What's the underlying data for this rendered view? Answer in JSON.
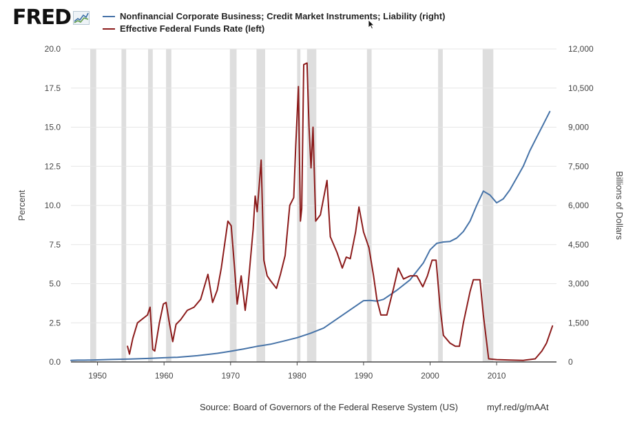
{
  "logo": {
    "text": "FRED",
    "icon": "chart-line-icon"
  },
  "chart_data": {
    "type": "line",
    "x_range": [
      1946,
      2019
    ],
    "x_ticks": [
      "1950",
      "1960",
      "1970",
      "1980",
      "1990",
      "2000",
      "2010"
    ],
    "left_axis": {
      "label": "Percent",
      "range": [
        0,
        20
      ],
      "ticks": [
        "0.0",
        "2.5",
        "5.0",
        "7.5",
        "10.0",
        "12.5",
        "15.0",
        "17.5",
        "20.0"
      ]
    },
    "right_axis": {
      "label": "Billions of Dollars",
      "range": [
        0,
        12000
      ],
      "ticks": [
        "0",
        "1,500",
        "3,000",
        "4,500",
        "6,000",
        "7,500",
        "9,000",
        "10,500",
        "12,000"
      ]
    },
    "gridlines": "horizontal",
    "recessions": [
      [
        1948.9,
        1949.8
      ],
      [
        1953.6,
        1954.3
      ],
      [
        1957.6,
        1958.3
      ],
      [
        1960.3,
        1961.1
      ],
      [
        1969.9,
        1970.9
      ],
      [
        1973.9,
        1975.2
      ],
      [
        1980.0,
        1980.5
      ],
      [
        1981.5,
        1982.9
      ],
      [
        1990.5,
        1991.2
      ],
      [
        2001.2,
        2001.9
      ],
      [
        2007.9,
        2009.5
      ]
    ],
    "series": [
      {
        "name": "Nonfinancial Corporate Business; Credit Market Instruments; Liability (right)",
        "axis": "right",
        "color": "#4572a7",
        "points": [
          [
            1946,
            60
          ],
          [
            1947,
            70
          ],
          [
            1948,
            70
          ],
          [
            1949,
            75
          ],
          [
            1950,
            80
          ],
          [
            1952,
            95
          ],
          [
            1955,
            110
          ],
          [
            1958,
            140
          ],
          [
            1960,
            160
          ],
          [
            1962,
            180
          ],
          [
            1965,
            240
          ],
          [
            1968,
            330
          ],
          [
            1970,
            410
          ],
          [
            1972,
            500
          ],
          [
            1974,
            600
          ],
          [
            1976,
            680
          ],
          [
            1978,
            800
          ],
          [
            1980,
            930
          ],
          [
            1982,
            1100
          ],
          [
            1984,
            1300
          ],
          [
            1986,
            1650
          ],
          [
            1988,
            2000
          ],
          [
            1990,
            2350
          ],
          [
            1991,
            2360
          ],
          [
            1992,
            2330
          ],
          [
            1993,
            2400
          ],
          [
            1995,
            2750
          ],
          [
            1997,
            3150
          ],
          [
            1999,
            3800
          ],
          [
            2000,
            4300
          ],
          [
            2001,
            4550
          ],
          [
            2002,
            4600
          ],
          [
            2003,
            4620
          ],
          [
            2004,
            4750
          ],
          [
            2005,
            5000
          ],
          [
            2006,
            5400
          ],
          [
            2007,
            6000
          ],
          [
            2008,
            6550
          ],
          [
            2009,
            6400
          ],
          [
            2010,
            6100
          ],
          [
            2011,
            6250
          ],
          [
            2012,
            6600
          ],
          [
            2013,
            7050
          ],
          [
            2014,
            7500
          ],
          [
            2015,
            8100
          ],
          [
            2016,
            8600
          ],
          [
            2017,
            9100
          ],
          [
            2018,
            9600
          ]
        ]
      },
      {
        "name": "Effective Federal Funds Rate (left)",
        "axis": "left",
        "color": "#8b1a1a",
        "points": [
          [
            1954.5,
            1.0
          ],
          [
            1954.8,
            0.5
          ],
          [
            1955.3,
            1.5
          ],
          [
            1956,
            2.5
          ],
          [
            1957.5,
            3.0
          ],
          [
            1957.9,
            3.5
          ],
          [
            1958.3,
            0.8
          ],
          [
            1958.6,
            0.7
          ],
          [
            1959.3,
            2.5
          ],
          [
            1959.9,
            3.7
          ],
          [
            1960.3,
            3.8
          ],
          [
            1960.8,
            2.5
          ],
          [
            1961.3,
            1.3
          ],
          [
            1961.8,
            2.4
          ],
          [
            1962.5,
            2.7
          ],
          [
            1963.5,
            3.3
          ],
          [
            1964.5,
            3.5
          ],
          [
            1965.5,
            4.0
          ],
          [
            1966.6,
            5.6
          ],
          [
            1967.3,
            3.8
          ],
          [
            1968,
            4.6
          ],
          [
            1968.6,
            6.0
          ],
          [
            1969.6,
            9.0
          ],
          [
            1970.1,
            8.7
          ],
          [
            1970.6,
            6.0
          ],
          [
            1971,
            3.7
          ],
          [
            1971.6,
            5.5
          ],
          [
            1972.2,
            3.3
          ],
          [
            1972.6,
            4.7
          ],
          [
            1973.4,
            8.5
          ],
          [
            1973.7,
            10.6
          ],
          [
            1974,
            9.6
          ],
          [
            1974.6,
            12.9
          ],
          [
            1975,
            6.5
          ],
          [
            1975.5,
            5.5
          ],
          [
            1976,
            5.2
          ],
          [
            1976.9,
            4.7
          ],
          [
            1977.5,
            5.6
          ],
          [
            1978.2,
            6.8
          ],
          [
            1978.9,
            10.0
          ],
          [
            1979.5,
            10.5
          ],
          [
            1979.8,
            13.8
          ],
          [
            1980.2,
            17.6
          ],
          [
            1980.5,
            9.0
          ],
          [
            1980.7,
            9.8
          ],
          [
            1981,
            19.0
          ],
          [
            1981.5,
            19.1
          ],
          [
            1981.8,
            15.0
          ],
          [
            1982.1,
            12.4
          ],
          [
            1982.4,
            15.0
          ],
          [
            1982.8,
            9.0
          ],
          [
            1983.5,
            9.4
          ],
          [
            1984.5,
            11.6
          ],
          [
            1985,
            8.0
          ],
          [
            1986,
            7.0
          ],
          [
            1986.8,
            6.0
          ],
          [
            1987.4,
            6.7
          ],
          [
            1988,
            6.6
          ],
          [
            1988.8,
            8.3
          ],
          [
            1989.3,
            9.9
          ],
          [
            1990,
            8.3
          ],
          [
            1990.8,
            7.3
          ],
          [
            1991.5,
            5.5
          ],
          [
            1992,
            4.0
          ],
          [
            1992.6,
            3.0
          ],
          [
            1993.5,
            3.0
          ],
          [
            1994.5,
            4.7
          ],
          [
            1995.2,
            6.0
          ],
          [
            1996,
            5.3
          ],
          [
            1997,
            5.5
          ],
          [
            1998,
            5.5
          ],
          [
            1998.9,
            4.8
          ],
          [
            1999.6,
            5.5
          ],
          [
            2000.3,
            6.5
          ],
          [
            2000.9,
            6.5
          ],
          [
            2001.5,
            3.5
          ],
          [
            2002,
            1.7
          ],
          [
            2003,
            1.2
          ],
          [
            2003.8,
            1.0
          ],
          [
            2004.4,
            1.0
          ],
          [
            2005,
            2.5
          ],
          [
            2006,
            4.5
          ],
          [
            2006.5,
            5.25
          ],
          [
            2007.5,
            5.25
          ],
          [
            2008,
            3.0
          ],
          [
            2008.8,
            0.2
          ],
          [
            2010,
            0.15
          ],
          [
            2012,
            0.12
          ],
          [
            2014,
            0.1
          ],
          [
            2015.8,
            0.2
          ],
          [
            2016.8,
            0.7
          ],
          [
            2017.5,
            1.2
          ],
          [
            2018.4,
            2.3
          ]
        ]
      }
    ]
  },
  "footer": {
    "source": "Source: Board of Governors of the Federal Reserve System (US)",
    "shortlink": "myf.red/g/mAAt"
  }
}
